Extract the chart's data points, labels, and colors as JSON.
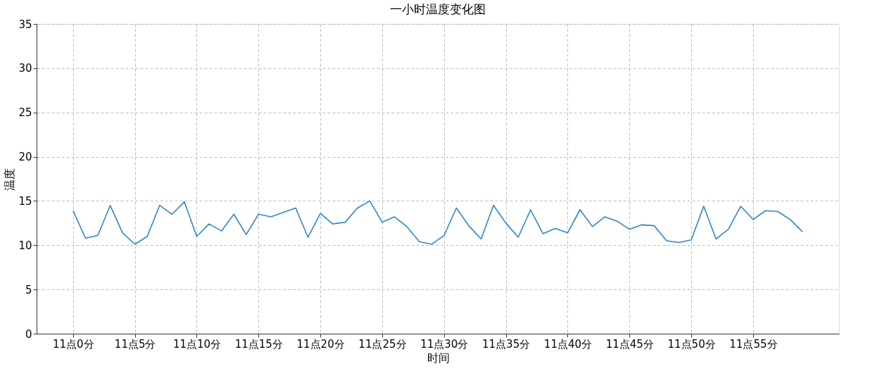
{
  "chart_data": {
    "type": "line",
    "title": "一小时温度变化图",
    "xlabel": "时间",
    "ylabel": "温度",
    "categories": [
      "11点0分",
      null,
      null,
      null,
      null,
      "11点5分",
      null,
      null,
      null,
      null,
      "11点10分",
      null,
      null,
      null,
      null,
      "11点15分",
      null,
      null,
      null,
      null,
      "11点20分",
      null,
      null,
      null,
      null,
      "11点25分",
      null,
      null,
      null,
      null,
      "11点30分",
      null,
      null,
      null,
      null,
      "11点35分",
      null,
      null,
      null,
      null,
      "11点40分",
      null,
      null,
      null,
      null,
      "11点45分",
      null,
      null,
      null,
      null,
      "11点50分",
      null,
      null,
      null,
      null,
      "11点55分",
      null,
      null,
      null,
      null
    ],
    "series": [
      {
        "color": "#2f86c6",
        "values": [
          13.9,
          10.8,
          11.1,
          14.5,
          11.4,
          10.1,
          11.0,
          14.5,
          13.5,
          14.9,
          11.0,
          12.4,
          11.6,
          13.5,
          11.2,
          13.5,
          13.2,
          13.7,
          14.2,
          10.9,
          13.6,
          12.4,
          12.6,
          14.2,
          15.0,
          12.6,
          13.2,
          12.1,
          10.4,
          10.1,
          11.1,
          14.2,
          12.2,
          10.7,
          14.5,
          12.5,
          10.9,
          14.0,
          11.3,
          11.9,
          11.4,
          14.0,
          12.1,
          13.2,
          12.7,
          11.8,
          12.3,
          12.2,
          10.5,
          10.3,
          10.6,
          14.4,
          10.7,
          11.8,
          14.4,
          12.9,
          13.9,
          13.8,
          12.9,
          11.5
        ]
      }
    ],
    "ylim": [
      0,
      35
    ],
    "yticks": [
      0,
      5,
      10,
      15,
      20,
      25,
      30,
      35
    ],
    "grid": true,
    "line_style": "solid",
    "marker": "none"
  }
}
